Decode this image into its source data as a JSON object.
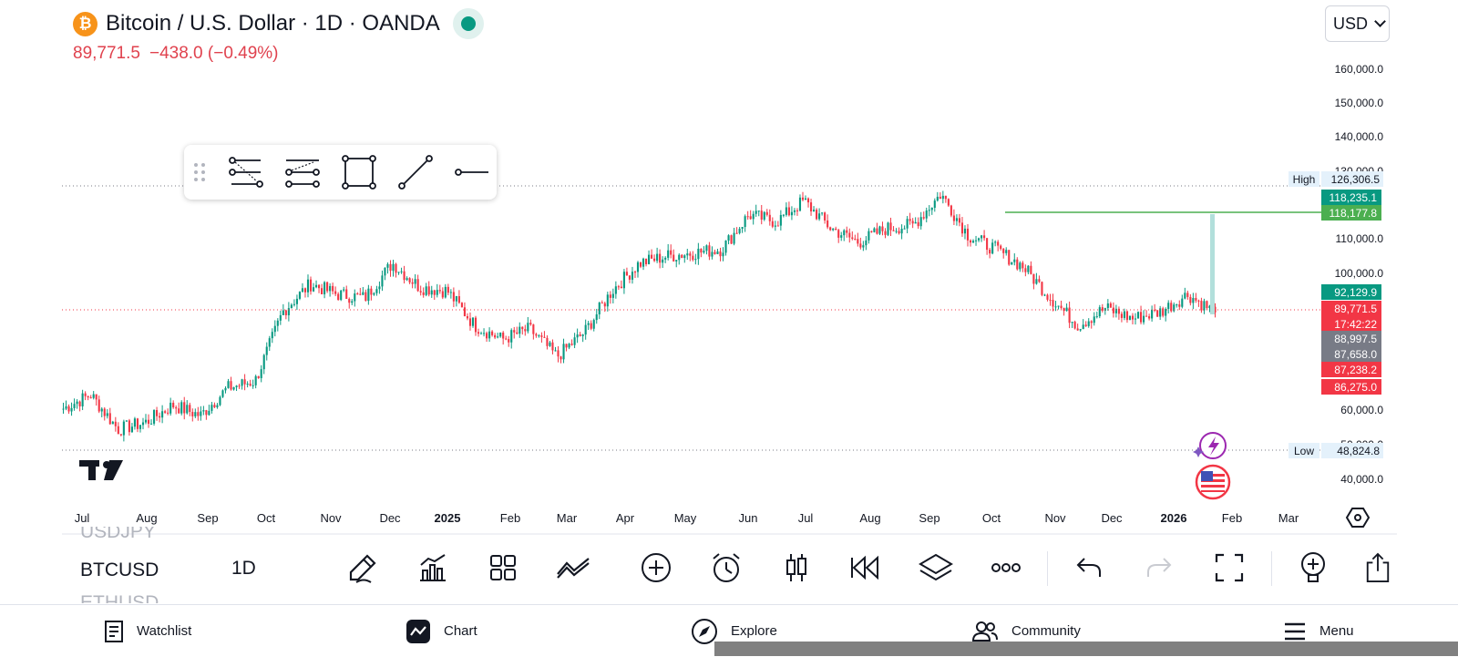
{
  "header": {
    "logo_glyph": "₿",
    "title": "Bitcoin / U.S. Dollar · 1D · OANDA",
    "price": "89,771.5",
    "change": "−438.0 (−0.49%)",
    "currency": "USD"
  },
  "colors": {
    "up": "#089981",
    "down": "#f23645",
    "accent_green": "#4caf50",
    "neutral_gray": "#787b86"
  },
  "chart_data": {
    "type": "candlestick",
    "symbol": "BTCUSD",
    "interval": "1D",
    "y_ticks": [
      "160,000.0",
      "150,000.0",
      "140,000.0",
      "130,000.0",
      "110,000.0",
      "100,000.0",
      "60,000.0",
      "50,000.0",
      "40,000.0"
    ],
    "x_ticks": [
      "Jul",
      "Aug",
      "Sep",
      "Oct",
      "Nov",
      "Dec",
      "2025",
      "Feb",
      "Mar",
      "Apr",
      "May",
      "Jun",
      "Jul",
      "Aug",
      "Sep",
      "Oct",
      "Nov",
      "Dec",
      "2026",
      "Feb",
      "Mar"
    ],
    "high": {
      "label": "High",
      "value": "126,306.5"
    },
    "low": {
      "label": "Low",
      "value": "48,824.8"
    },
    "price_labels": [
      {
        "text": "118,235.1",
        "color": "#089981"
      },
      {
        "text": "118,177.8",
        "color": "#4caf50"
      },
      {
        "text": "92,129.9",
        "color": "#089981"
      },
      {
        "text": "89,771.5",
        "color": "#f23645"
      },
      {
        "text": "17:42:22",
        "color": "#f23645"
      },
      {
        "text": "88,997.5",
        "color": "#787b86"
      },
      {
        "text": "87,658.0",
        "color": "#787b86"
      },
      {
        "text": "87,238.2",
        "color": "#f23645"
      },
      {
        "text": "86,275.0",
        "color": "#f23645"
      }
    ],
    "closes": [
      {
        "x": "Jul",
        "y": 62000
      },
      {
        "x": "Aug",
        "y": 66000
      },
      {
        "x": "Aug",
        "y": 56000
      },
      {
        "x": "Sep",
        "y": 58000
      },
      {
        "x": "Sep",
        "y": 63000
      },
      {
        "x": "Oct",
        "y": 60000
      },
      {
        "x": "Oct",
        "y": 68000
      },
      {
        "x": "Nov",
        "y": 70000
      },
      {
        "x": "Nov",
        "y": 90000
      },
      {
        "x": "Dec",
        "y": 98000
      },
      {
        "x": "Dec",
        "y": 95000
      },
      {
        "x": "2025",
        "y": 94000
      },
      {
        "x": "2025",
        "y": 104000
      },
      {
        "x": "Feb",
        "y": 97000
      },
      {
        "x": "Feb",
        "y": 96000
      },
      {
        "x": "Mar",
        "y": 86000
      },
      {
        "x": "Mar",
        "y": 82000
      },
      {
        "x": "Apr",
        "y": 85000
      },
      {
        "x": "Apr",
        "y": 77000
      },
      {
        "x": "Apr",
        "y": 84000
      },
      {
        "x": "May",
        "y": 96000
      },
      {
        "x": "May",
        "y": 104000
      },
      {
        "x": "Jun",
        "y": 106000
      },
      {
        "x": "Jun",
        "y": 107000
      },
      {
        "x": "Jul",
        "y": 108000
      },
      {
        "x": "Jul",
        "y": 118000
      },
      {
        "x": "Aug",
        "y": 116000
      },
      {
        "x": "Aug",
        "y": 122000
      },
      {
        "x": "Aug",
        "y": 114000
      },
      {
        "x": "Sep",
        "y": 110000
      },
      {
        "x": "Sep",
        "y": 114000
      },
      {
        "x": "Oct",
        "y": 115000
      },
      {
        "x": "Oct",
        "y": 124000
      },
      {
        "x": "Oct",
        "y": 112000
      },
      {
        "x": "Nov",
        "y": 108000
      },
      {
        "x": "Nov",
        "y": 103000
      },
      {
        "x": "Nov",
        "y": 94000
      },
      {
        "x": "Dec",
        "y": 86000
      },
      {
        "x": "Dec",
        "y": 91000
      },
      {
        "x": "Dec",
        "y": 88000
      },
      {
        "x": "2026",
        "y": 90000
      },
      {
        "x": "2026",
        "y": 95000
      },
      {
        "x": "Feb",
        "y": 89771.5
      }
    ]
  },
  "drawing_toolbar": {
    "items": [
      "fib-retracement",
      "trend-based-fib",
      "rectangle",
      "trend-line",
      "horizontal-ray"
    ]
  },
  "toolbar": {
    "symbols": [
      "USDJPY",
      "BTCUSD",
      "ETHUSD"
    ],
    "interval": "1D"
  },
  "nav": {
    "watchlist": "Watchlist",
    "chart": "Chart",
    "explore": "Explore",
    "community": "Community",
    "menu": "Menu"
  },
  "logo_text": "TV"
}
